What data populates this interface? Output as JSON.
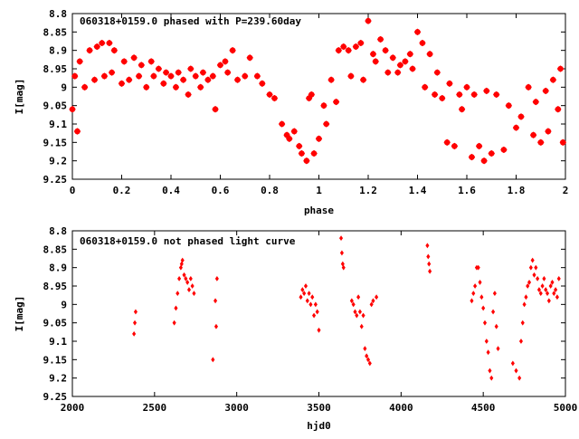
{
  "colors": {
    "marker": "#ff0000",
    "axis": "#000000",
    "background": "#ffffff"
  },
  "chart_data": [
    {
      "type": "scatter",
      "title": "060318+0159.0 phased with P=239.60day",
      "xlabel": "phase",
      "ylabel": "I[mag]",
      "xlim": [
        0,
        2
      ],
      "ylim": [
        9.25,
        8.8
      ],
      "y_inverted": true,
      "grid": false,
      "marker": "star",
      "xticks": [
        "0",
        "0.2",
        "0.4",
        "0.6",
        "0.8",
        "1",
        "1.2",
        "1.4",
        "1.6",
        "1.8",
        "2"
      ],
      "yticks": [
        "8.8",
        "8.85",
        "8.9",
        "8.95",
        "9",
        "9.05",
        "9.1",
        "9.15",
        "9.2",
        "9.25"
      ],
      "x": [
        0.0,
        0.01,
        0.02,
        0.03,
        0.05,
        0.07,
        0.09,
        0.1,
        0.12,
        0.13,
        0.15,
        0.16,
        0.17,
        0.2,
        0.21,
        0.23,
        0.25,
        0.27,
        0.28,
        0.3,
        0.32,
        0.33,
        0.35,
        0.37,
        0.38,
        0.4,
        0.42,
        0.43,
        0.45,
        0.47,
        0.48,
        0.5,
        0.52,
        0.53,
        0.55,
        0.57,
        0.58,
        0.6,
        0.62,
        0.63,
        0.65,
        0.67,
        0.7,
        0.72,
        0.75,
        0.77,
        0.8,
        0.82,
        0.85,
        0.87,
        0.88,
        0.9,
        0.92,
        0.93,
        0.95,
        0.96,
        0.97,
        0.98,
        1.0,
        1.02,
        1.03,
        1.05,
        1.07,
        1.08,
        1.1,
        1.12,
        1.13,
        1.15,
        1.17,
        1.18,
        1.2,
        1.22,
        1.23,
        1.25,
        1.27,
        1.28,
        1.3,
        1.32,
        1.33,
        1.35,
        1.37,
        1.38,
        1.4,
        1.42,
        1.43,
        1.45,
        1.47,
        1.48,
        1.5,
        1.52,
        1.53,
        1.55,
        1.57,
        1.58,
        1.6,
        1.62,
        1.63,
        1.65,
        1.67,
        1.68,
        1.7,
        1.72,
        1.75,
        1.77,
        1.8,
        1.82,
        1.85,
        1.87,
        1.88,
        1.9,
        1.92,
        1.93,
        1.95,
        1.97,
        1.98,
        1.99
      ],
      "y": [
        9.06,
        8.97,
        9.12,
        8.93,
        9.0,
        8.9,
        8.98,
        8.89,
        8.88,
        8.97,
        8.88,
        8.96,
        8.9,
        8.99,
        8.93,
        8.98,
        8.92,
        8.97,
        8.94,
        9.0,
        8.93,
        8.97,
        8.95,
        8.99,
        8.96,
        8.97,
        9.0,
        8.96,
        8.98,
        9.02,
        8.95,
        8.97,
        9.0,
        8.96,
        8.98,
        8.97,
        9.06,
        8.94,
        8.93,
        8.96,
        8.9,
        8.98,
        8.97,
        8.92,
        8.97,
        8.99,
        9.02,
        9.03,
        9.1,
        9.13,
        9.14,
        9.12,
        9.16,
        9.18,
        9.2,
        9.03,
        9.02,
        9.18,
        9.14,
        9.05,
        9.1,
        8.98,
        9.04,
        8.9,
        8.89,
        8.9,
        8.97,
        8.89,
        8.88,
        8.98,
        8.82,
        8.91,
        8.93,
        8.87,
        8.9,
        8.96,
        8.92,
        8.96,
        8.94,
        8.93,
        8.91,
        8.95,
        8.85,
        8.88,
        9.0,
        8.91,
        9.02,
        8.96,
        9.03,
        9.15,
        8.99,
        9.16,
        9.02,
        9.06,
        9.0,
        9.19,
        9.02,
        9.16,
        9.2,
        9.01,
        9.18,
        9.02,
        9.17,
        9.05,
        9.11,
        9.08,
        9.0,
        9.13,
        9.04,
        9.15,
        9.01,
        9.12,
        8.98,
        9.06,
        8.95,
        9.15
      ],
      "point_count": "116"
    },
    {
      "type": "scatter",
      "title": "060318+0159.0 not phased light curve",
      "xlabel": "hjd0",
      "ylabel": "I[mag]",
      "xlim": [
        2000,
        5000
      ],
      "ylim": [
        9.25,
        8.8
      ],
      "y_inverted": true,
      "grid": false,
      "marker": "diamond",
      "xticks": [
        "2000",
        "2500",
        "3000",
        "3500",
        "4000",
        "4500",
        "5000"
      ],
      "yticks": [
        "8.8",
        "8.85",
        "8.9",
        "8.95",
        "9",
        "9.05",
        "9.1",
        "9.15",
        "9.2",
        "9.25"
      ],
      "x": [
        2375,
        2380,
        2385,
        2620,
        2630,
        2640,
        2650,
        2660,
        2665,
        2670,
        2680,
        2690,
        2700,
        2710,
        2720,
        2730,
        2740,
        2855,
        2870,
        2875,
        2880,
        3390,
        3400,
        3410,
        3420,
        3430,
        3440,
        3450,
        3460,
        3470,
        3480,
        3490,
        3500,
        3635,
        3640,
        3645,
        3650,
        3700,
        3710,
        3720,
        3730,
        3740,
        3750,
        3760,
        3770,
        3780,
        3790,
        3800,
        3810,
        3820,
        3830,
        3850,
        4160,
        4165,
        4170,
        4175,
        4430,
        4440,
        4450,
        4460,
        4470,
        4480,
        4490,
        4500,
        4510,
        4520,
        4530,
        4540,
        4550,
        4560,
        4570,
        4580,
        4590,
        4680,
        4700,
        4720,
        4730,
        4740,
        4750,
        4760,
        4770,
        4780,
        4790,
        4800,
        4810,
        4820,
        4830,
        4840,
        4850,
        4860,
        4870,
        4880,
        4890,
        4900,
        4910,
        4920,
        4930,
        4940,
        4950,
        4960
      ],
      "y": [
        9.08,
        9.05,
        9.02,
        9.05,
        9.01,
        8.97,
        8.93,
        8.9,
        8.89,
        8.88,
        8.92,
        8.93,
        8.94,
        8.96,
        8.93,
        8.95,
        8.97,
        9.15,
        8.99,
        9.06,
        8.93,
        8.98,
        8.96,
        8.97,
        8.95,
        8.99,
        8.97,
        9.0,
        8.98,
        9.03,
        9.0,
        9.02,
        9.07,
        8.82,
        8.86,
        8.89,
        8.9,
        8.99,
        9.0,
        9.02,
        9.03,
        8.98,
        9.02,
        9.06,
        9.03,
        9.12,
        9.14,
        9.15,
        9.16,
        9.0,
        8.99,
        8.98,
        8.84,
        8.87,
        8.89,
        8.91,
        8.99,
        8.97,
        8.95,
        8.9,
        8.9,
        8.94,
        8.98,
        9.01,
        9.05,
        9.1,
        9.13,
        9.18,
        9.2,
        9.02,
        8.97,
        9.06,
        9.12,
        9.16,
        9.18,
        9.2,
        9.1,
        9.05,
        9.0,
        8.98,
        8.95,
        8.94,
        8.9,
        8.88,
        8.92,
        8.9,
        8.93,
        8.96,
        8.97,
        8.95,
        8.93,
        8.96,
        8.97,
        8.99,
        8.95,
        8.94,
        8.97,
        8.96,
        8.98,
        8.93
      ],
      "point_count": "100"
    }
  ]
}
